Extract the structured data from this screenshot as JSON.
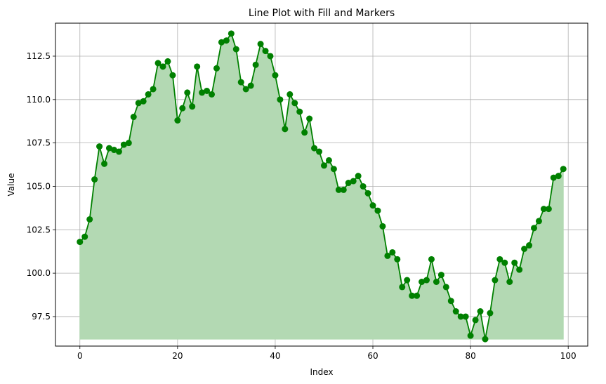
{
  "chart_data": {
    "type": "line",
    "title": "Line Plot with Fill and Markers",
    "xlabel": "Index",
    "ylabel": "Value",
    "xlim": [
      -5,
      104
    ],
    "ylim": [
      95.8,
      114.4
    ],
    "x_ticks": [
      0,
      20,
      40,
      60,
      80,
      100
    ],
    "y_ticks": [
      97.5,
      100.0,
      102.5,
      105.0,
      107.5,
      110.0,
      112.5
    ],
    "grid": true,
    "fill_baseline": 96.2,
    "colors": {
      "line": "#008000",
      "marker": "#008000",
      "fill": "#b3d9b3",
      "grid": "#b0b0b0"
    },
    "series": [
      {
        "values": [
          101.8,
          102.1,
          103.1,
          105.4,
          107.3,
          106.3,
          107.2,
          107.1,
          107.0,
          107.4,
          107.5,
          109.0,
          109.8,
          109.9,
          110.3,
          110.6,
          112.1,
          111.9,
          112.2,
          111.4,
          108.8,
          109.5,
          110.4,
          109.6,
          111.9,
          110.4,
          110.5,
          110.3,
          111.8,
          113.3,
          113.4,
          113.8,
          112.9,
          111.0,
          110.6,
          110.8,
          112.0,
          113.2,
          112.8,
          112.5,
          111.4,
          110.0,
          108.3,
          110.3,
          109.8,
          109.3,
          108.1,
          108.9,
          107.2,
          107.0,
          106.2,
          106.5,
          106.0,
          104.8,
          104.8,
          105.2,
          105.3,
          105.6,
          105.0,
          104.6,
          103.9,
          103.6,
          102.7,
          101.0,
          101.2,
          100.8,
          99.2,
          99.6,
          98.7,
          98.7,
          99.5,
          99.6,
          100.8,
          99.5,
          99.9,
          99.2,
          98.4,
          97.8,
          97.5,
          97.5,
          96.4,
          97.3,
          97.8,
          96.2,
          97.7,
          99.6,
          100.8,
          100.6,
          99.5,
          100.6,
          100.2,
          101.4,
          101.6,
          102.6,
          103.0,
          103.7,
          103.7,
          105.5,
          105.6,
          106.0
        ]
      }
    ]
  }
}
